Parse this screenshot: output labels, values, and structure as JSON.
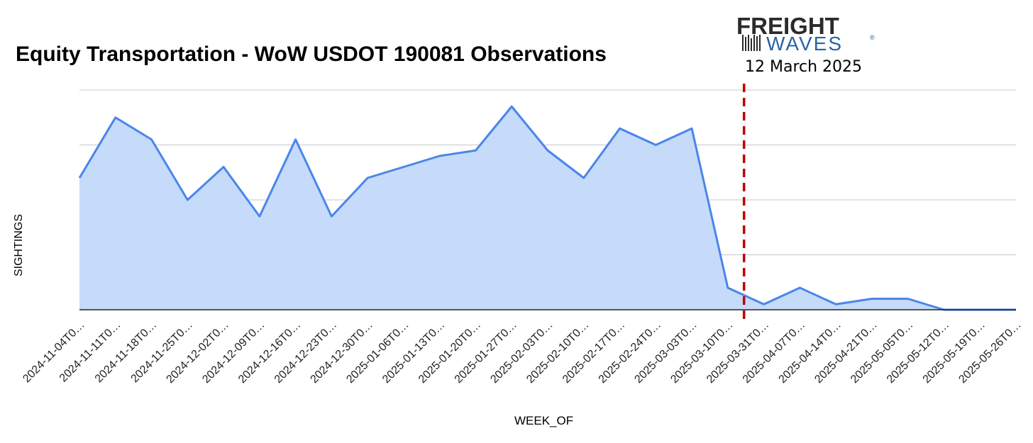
{
  "chart_data": {
    "type": "area",
    "title": "Equity Transportation - WoW USDOT 190081 Observations",
    "xlabel": "WEEK_OF",
    "ylabel": "SIGHTINGS",
    "ylim": [
      0,
      20
    ],
    "grid": true,
    "categories": [
      "2024-11-04T0…",
      "2024-11-11T0…",
      "2024-11-18T0…",
      "2024-11-25T0…",
      "2024-12-02T0…",
      "2024-12-09T0…",
      "2024-12-16T0…",
      "2024-12-23T0…",
      "2024-12-30T0…",
      "2025-01-06T0…",
      "2025-01-13T0…",
      "2025-01-20T0…",
      "2025-01-27T0…",
      "2025-02-03T0…",
      "2025-02-10T0…",
      "2025-02-17T0…",
      "2025-02-24T0…",
      "2025-03-03T0…",
      "2025-03-10T0…",
      "2025-03-31T0…",
      "2025-04-07T0…",
      "2025-04-14T0…",
      "2025-04-21T0…",
      "2025-05-05T0…",
      "2025-05-12T0…",
      "2025-05-19T0…",
      "2025-05-26T0…"
    ],
    "series": [
      {
        "values": [
          12,
          17.5,
          15.5,
          10,
          13,
          8.5,
          15.5,
          8.5,
          12,
          13,
          14,
          14.5,
          18.5,
          14.5,
          12,
          16.5,
          15,
          16.5,
          2,
          0.5,
          2,
          0.5,
          1,
          1,
          0,
          0,
          0
        ],
        "line_color": "#4a86e8",
        "fill_color": "#c6dafa"
      }
    ],
    "annotations": [
      {
        "type": "vertical-dashed-line",
        "position_between": [
          "2025-03-10T0…",
          "2025-03-31T0…"
        ],
        "fraction": 0.45,
        "color": "#c00000",
        "label": "12 March 2025"
      }
    ]
  },
  "logo": {
    "line1": "FREIGHT",
    "line2": "WAVES",
    "registered": "®"
  }
}
